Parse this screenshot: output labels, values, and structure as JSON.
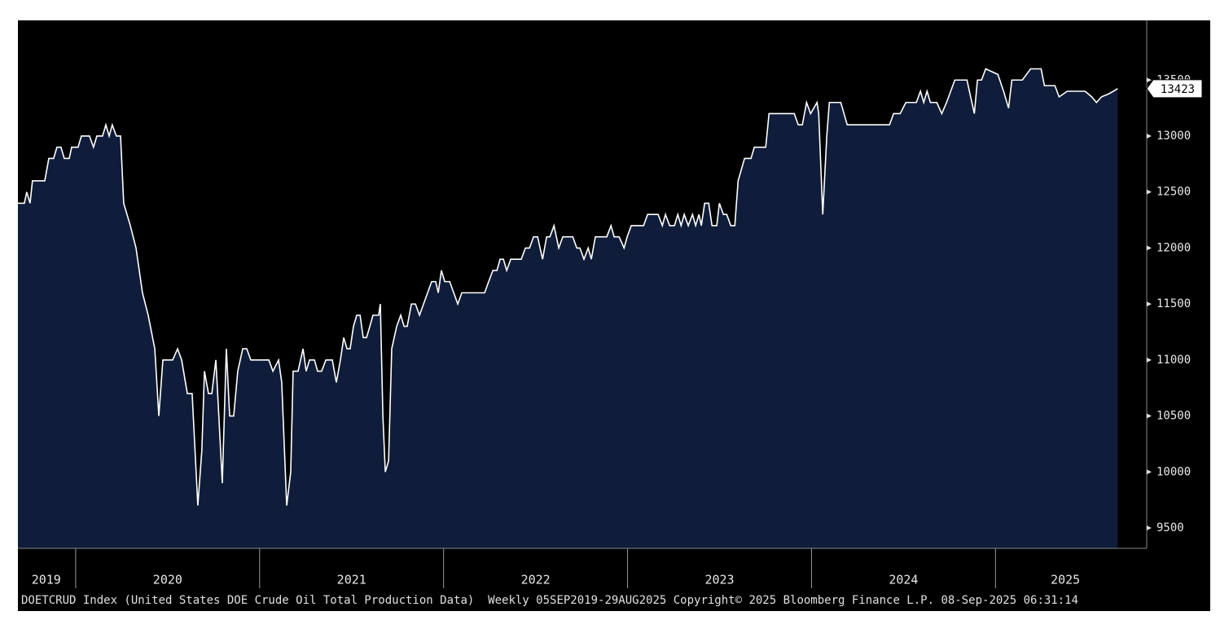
{
  "chart_data": {
    "type": "area",
    "series": [
      {
        "name": "DOETCRUD Index",
        "color": "#ffffff",
        "fill": "#0f1d3a",
        "x": [
          2019.686,
          2019.721,
          2019.734,
          2019.752,
          2019.765,
          2019.832,
          2019.854,
          2019.88,
          2019.898,
          2019.92,
          2019.938,
          2019.965,
          2019.978,
          2020.013,
          2020.031,
          2020.075,
          2020.097,
          2020.115,
          2020.146,
          2020.164,
          2020.182,
          2020.199,
          2020.221,
          2020.244,
          2020.261,
          2020.297,
          2020.328,
          2020.363,
          2020.394,
          2020.43,
          2020.452,
          2020.474,
          2020.527,
          2020.554,
          2020.576,
          2020.607,
          2020.633,
          2020.664,
          2020.686,
          2020.7,
          2020.722,
          2020.74,
          2020.762,
          2020.775,
          2020.797,
          2020.819,
          2020.837,
          2020.859,
          2020.881,
          2020.908,
          2020.93,
          2020.952,
          2021.05,
          2021.072,
          2021.103,
          2021.12,
          2021.147,
          2021.169,
          2021.182,
          2021.209,
          2021.236,
          2021.253,
          2021.271,
          2021.298,
          2021.315,
          2021.337,
          2021.36,
          2021.395,
          2021.417,
          2021.439,
          2021.457,
          2021.475,
          2021.492,
          2021.51,
          2021.528,
          2021.546,
          2021.563,
          2021.581,
          2021.599,
          2021.616,
          2021.647,
          2021.656,
          2021.67,
          2021.683,
          2021.701,
          2021.718,
          2021.745,
          2021.767,
          2021.785,
          2021.802,
          2021.825,
          2021.847,
          2021.869,
          2021.891,
          2021.913,
          2021.935,
          2021.957,
          2021.971,
          2021.988,
          2022.006,
          2022.033,
          2022.055,
          2022.077,
          2022.099,
          2022.157,
          2022.223,
          2022.245,
          2022.268,
          2022.29,
          2022.307,
          2022.325,
          2022.343,
          2022.365,
          2022.422,
          2022.445,
          2022.467,
          2022.489,
          2022.511,
          2022.538,
          2022.56,
          2022.578,
          2022.6,
          2022.626,
          2022.648,
          2022.702,
          2022.724,
          2022.741,
          2022.763,
          2022.786,
          2022.803,
          2022.825,
          2022.848,
          2022.887,
          2022.91,
          2022.927,
          2022.954,
          2022.981,
          2022.998,
          2023.02,
          2023.087,
          2023.109,
          2023.166,
          2023.189,
          2023.206,
          2023.229,
          2023.255,
          2023.273,
          2023.291,
          2023.308,
          2023.33,
          2023.353,
          2023.37,
          2023.388,
          2023.401,
          2023.419,
          2023.441,
          2023.459,
          2023.485,
          2023.499,
          2023.521,
          2023.539,
          2023.561,
          2023.583,
          2023.601,
          2023.636,
          2023.671,
          2023.689,
          2023.751,
          2023.769,
          2023.906,
          2023.928,
          2023.95,
          2023.973,
          2023.995,
          2024.03,
          2024.039,
          2024.061,
          2024.083,
          2024.097,
          2024.159,
          2024.194,
          2024.424,
          2024.446,
          2024.482,
          2024.513,
          2024.57,
          2024.592,
          2024.61,
          2024.628,
          2024.646,
          2024.681,
          2024.708,
          2024.734,
          2024.779,
          2024.845,
          2024.885,
          2024.902,
          2024.924,
          2024.947,
          2025.013,
          2025.044,
          2025.071,
          2025.089,
          2025.146,
          2025.191,
          2025.248,
          2025.266,
          2025.323,
          2025.346,
          2025.39,
          2025.487,
          2025.523,
          2025.549,
          2025.576,
          2025.62,
          2025.664
        ],
        "values": [
          12400,
          12400,
          12500,
          12400,
          12600,
          12600,
          12800,
          12800,
          12900,
          12900,
          12800,
          12800,
          12900,
          12900,
          13000,
          13000,
          12900,
          13000,
          13000,
          13100,
          13000,
          13100,
          13000,
          13000,
          12400,
          12200,
          12000,
          11600,
          11400,
          11100,
          10500,
          11000,
          11000,
          11100,
          11000,
          10700,
          10700,
          9700,
          10200,
          10900,
          10700,
          10700,
          11000,
          10600,
          9900,
          11100,
          10500,
          10500,
          10900,
          11100,
          11100,
          11000,
          11000,
          10900,
          11000,
          10800,
          9700,
          10000,
          10900,
          10900,
          11100,
          10900,
          11000,
          11000,
          10900,
          10900,
          11000,
          11000,
          10800,
          11000,
          11200,
          11100,
          11100,
          11300,
          11400,
          11400,
          11200,
          11200,
          11300,
          11400,
          11400,
          11500,
          10500,
          10000,
          10100,
          11100,
          11300,
          11400,
          11300,
          11300,
          11500,
          11500,
          11400,
          11500,
          11600,
          11700,
          11700,
          11600,
          11800,
          11700,
          11700,
          11600,
          11500,
          11600,
          11600,
          11600,
          11700,
          11800,
          11800,
          11900,
          11900,
          11800,
          11900,
          11900,
          12000,
          12000,
          12100,
          12100,
          11900,
          12100,
          12100,
          12200,
          12000,
          12100,
          12100,
          12000,
          12000,
          11900,
          12000,
          11900,
          12100,
          12100,
          12100,
          12200,
          12100,
          12100,
          12000,
          12100,
          12200,
          12200,
          12300,
          12300,
          12200,
          12300,
          12200,
          12200,
          12300,
          12200,
          12300,
          12200,
          12300,
          12200,
          12300,
          12200,
          12400,
          12400,
          12200,
          12200,
          12400,
          12300,
          12300,
          12200,
          12200,
          12600,
          12800,
          12800,
          12900,
          12900,
          13200,
          13200,
          13100,
          13100,
          13300,
          13200,
          13300,
          13200,
          12300,
          13000,
          13300,
          13300,
          13100,
          13100,
          13200,
          13200,
          13300,
          13300,
          13400,
          13300,
          13400,
          13300,
          13300,
          13200,
          13300,
          13500,
          13500,
          13200,
          13500,
          13500,
          13600,
          13550,
          13400,
          13250,
          13500,
          13500,
          13600,
          13600,
          13450,
          13450,
          13350,
          13400,
          13400,
          13350,
          13300,
          13350,
          13380,
          13423
        ]
      }
    ],
    "xlim": [
      2019.686,
      2025.822
    ],
    "xticks": [
      {
        "value": 2019.84,
        "label": "2019"
      },
      {
        "value": 2020.5,
        "label": "2020"
      },
      {
        "value": 2021.5,
        "label": "2021"
      },
      {
        "value": 2022.5,
        "label": "2022"
      },
      {
        "value": 2023.5,
        "label": "2023"
      },
      {
        "value": 2024.5,
        "label": "2024"
      },
      {
        "value": 2025.38,
        "label": "2025"
      }
    ],
    "year_boundaries": [
      2020,
      2021,
      2022,
      2023,
      2024,
      2025
    ],
    "ylim": [
      9318,
      14033
    ],
    "yticks": [
      9500,
      10000,
      10500,
      11000,
      11500,
      12000,
      12500,
      13000,
      13500
    ],
    "footer": "DOETCRUD Index (United States DOE Crude Oil Total Production Data)  Weekly 05SEP2019-29AUG2025 Copyright© 2025 Bloomberg Finance L.P. 08-Sep-2025 06:31:14"
  }
}
